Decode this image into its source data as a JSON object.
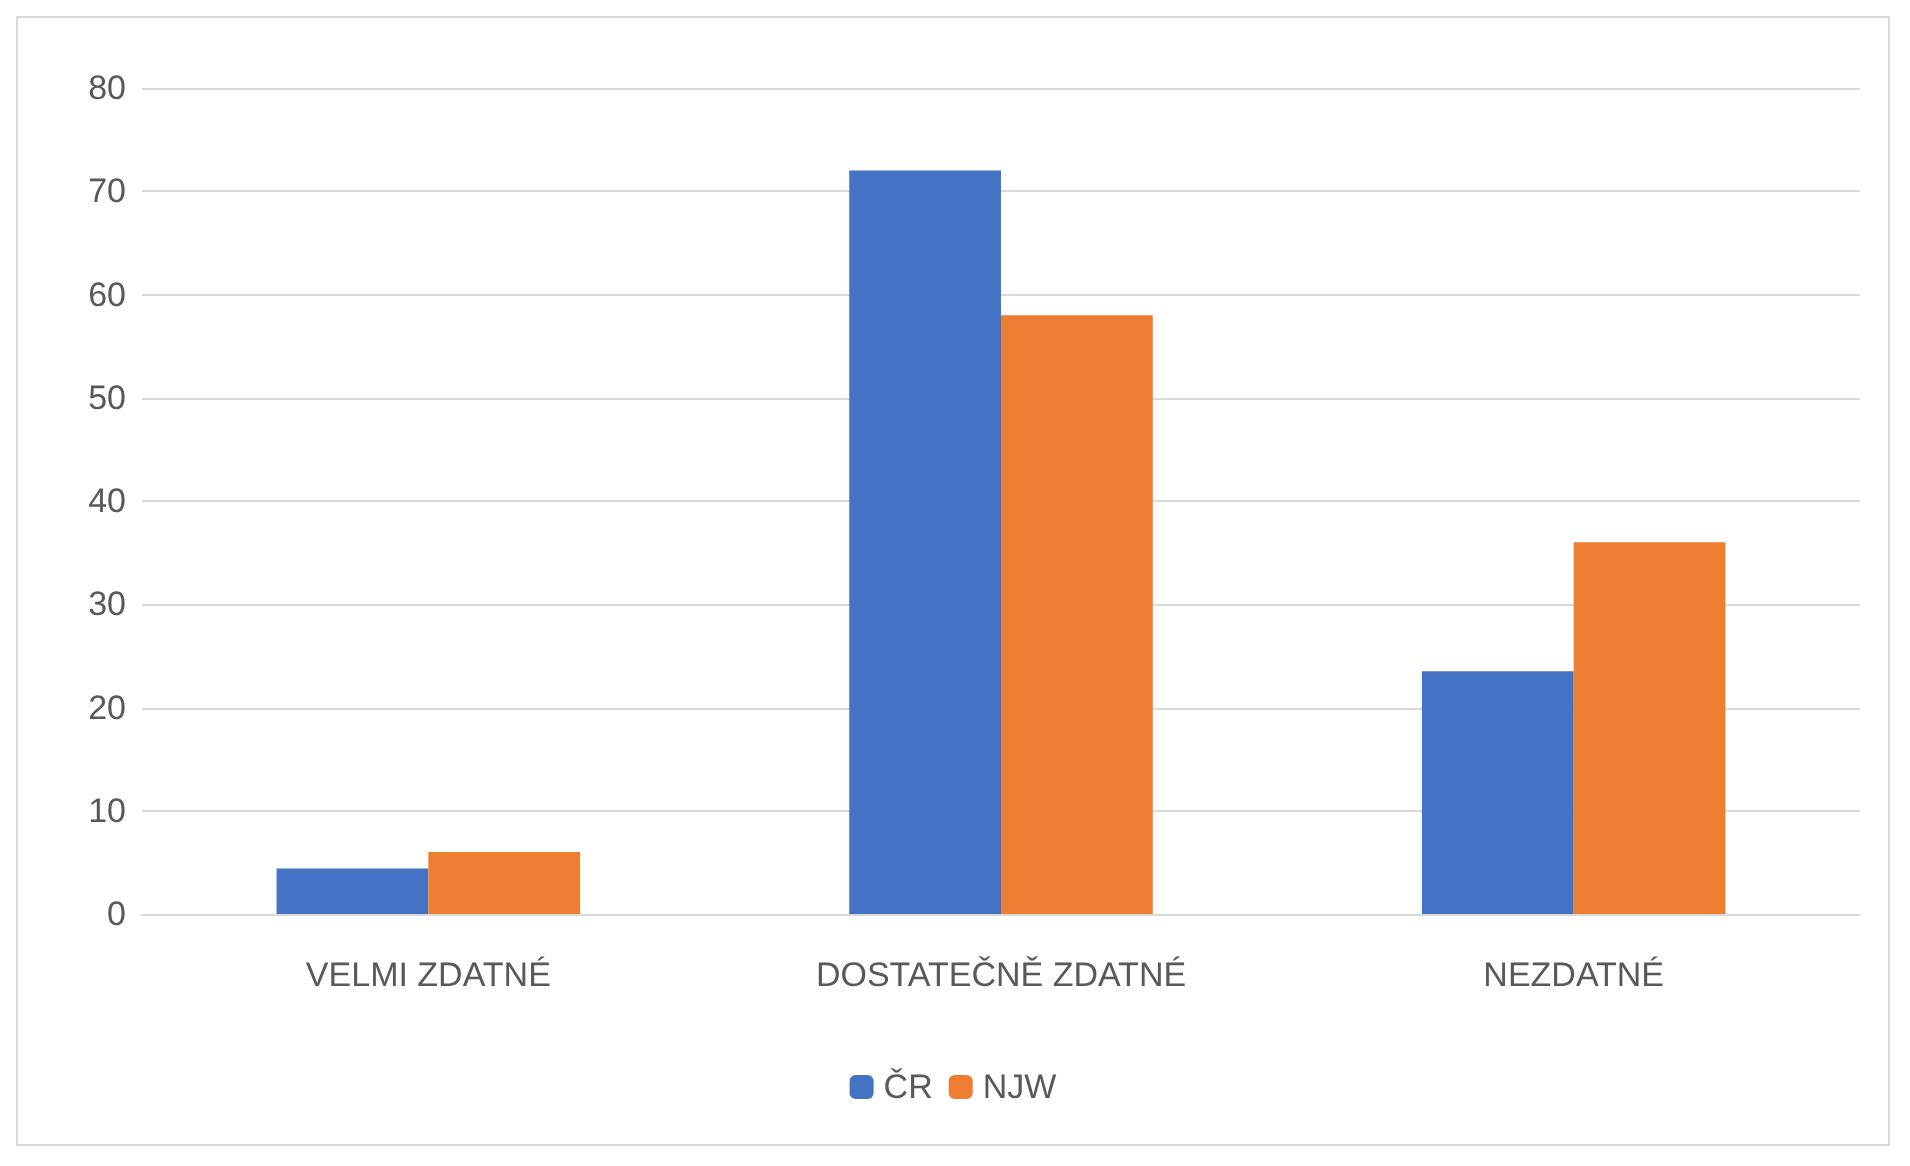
{
  "chart_data": {
    "type": "bar",
    "categories": [
      "VELMI ZDATNÉ",
      "DOSTATEČNĚ ZDATNÉ",
      "NEZDATNÉ"
    ],
    "series": [
      {
        "name": "ČR",
        "color": "#4472c4",
        "values": [
          4.4,
          72,
          23.5
        ]
      },
      {
        "name": "NJW",
        "color": "#ed7d31",
        "values": [
          6,
          58,
          36
        ]
      }
    ],
    "ylim": [
      0,
      80
    ],
    "yticks": [
      0,
      10,
      20,
      30,
      40,
      50,
      60,
      70,
      80
    ],
    "grid": "y",
    "legend": "bottom"
  }
}
